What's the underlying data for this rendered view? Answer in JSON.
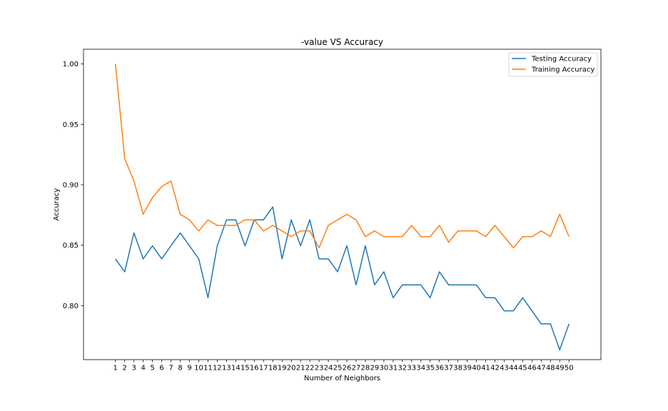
{
  "chart_data": {
    "type": "line",
    "title": "-value VS Accuracy",
    "xlabel": "Number of Neighbors",
    "ylabel": "Accuracy",
    "x": [
      1,
      2,
      3,
      4,
      5,
      6,
      7,
      8,
      9,
      10,
      11,
      12,
      13,
      14,
      15,
      16,
      17,
      18,
      19,
      20,
      21,
      22,
      23,
      24,
      25,
      26,
      27,
      28,
      29,
      30,
      31,
      32,
      33,
      34,
      35,
      36,
      37,
      38,
      39,
      40,
      41,
      42,
      43,
      44,
      45,
      46,
      47,
      48,
      49,
      50
    ],
    "xlim": [
      -2.45,
      53.45
    ],
    "ylim": [
      0.7553,
      1.0122
    ],
    "yticks": [
      0.8,
      0.85,
      0.9,
      0.95,
      1.0
    ],
    "ytick_labels": [
      "0.80",
      "0.85",
      "0.90",
      "0.95",
      "1.00"
    ],
    "grid": false,
    "legend_position": "top-right",
    "series": [
      {
        "name": "Testing Accuracy",
        "color": "#1f77b4",
        "values": [
          0.8387,
          0.828,
          0.8602,
          0.8387,
          0.8495,
          0.8387,
          0.8495,
          0.8602,
          0.8495,
          0.8387,
          0.8065,
          0.8495,
          0.871,
          0.871,
          0.8495,
          0.871,
          0.871,
          0.8817,
          0.8387,
          0.871,
          0.8495,
          0.871,
          0.8387,
          0.8387,
          0.828,
          0.8495,
          0.8172,
          0.8495,
          0.8172,
          0.828,
          0.8065,
          0.8172,
          0.8172,
          0.8172,
          0.8065,
          0.828,
          0.8172,
          0.8172,
          0.8172,
          0.8172,
          0.8065,
          0.8065,
          0.7957,
          0.7957,
          0.8065,
          0.7957,
          0.7849,
          0.7849,
          0.7634,
          0.7849
        ]
      },
      {
        "name": "Training Accuracy",
        "color": "#ff7f0e",
        "values": [
          1.0,
          0.9217,
          0.9032,
          0.8756,
          0.8894,
          0.8986,
          0.9032,
          0.8756,
          0.871,
          0.8618,
          0.871,
          0.8664,
          0.8664,
          0.8664,
          0.871,
          0.871,
          0.8618,
          0.8664,
          0.8618,
          0.8571,
          0.8618,
          0.8618,
          0.8479,
          0.8664,
          0.871,
          0.8756,
          0.871,
          0.8571,
          0.8618,
          0.8571,
          0.8571,
          0.8571,
          0.8664,
          0.8571,
          0.8571,
          0.8664,
          0.8525,
          0.8618,
          0.8618,
          0.8618,
          0.8571,
          0.8664,
          0.8571,
          0.8479,
          0.8571,
          0.8571,
          0.8618,
          0.8571,
          0.8756,
          0.8571
        ]
      }
    ]
  }
}
